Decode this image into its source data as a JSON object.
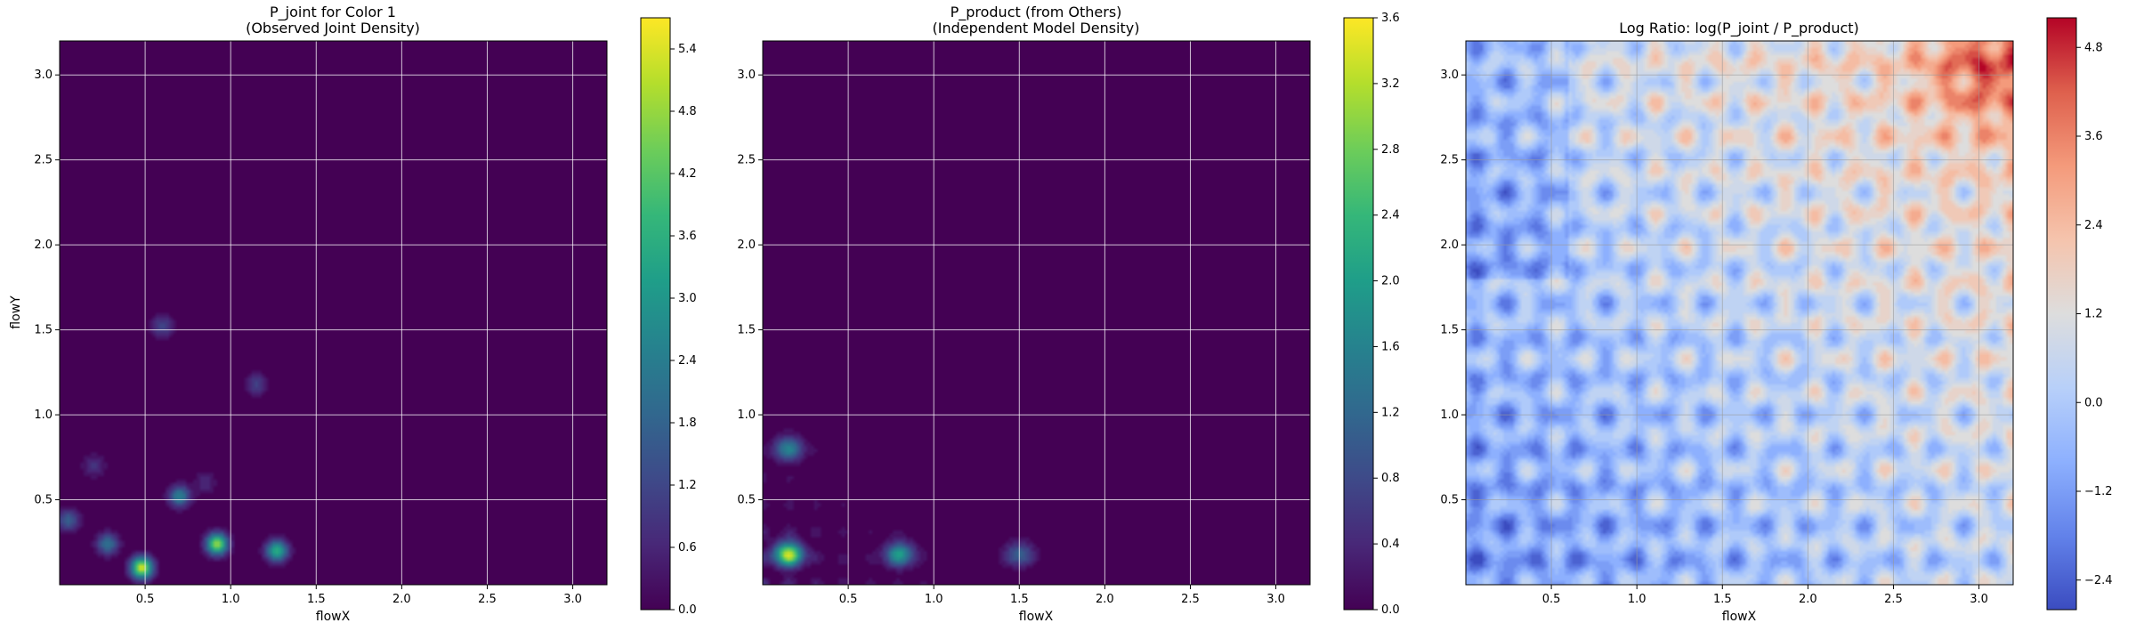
{
  "chart_data": [
    {
      "type": "heatmap",
      "title_lines": [
        "P_joint for Color 1",
        "(Observed Joint Density)"
      ],
      "xlabel": "flowX",
      "ylabel": "flowY",
      "xlim": [
        0.0,
        3.2
      ],
      "ylim": [
        0.0,
        3.2
      ],
      "xticks": [
        "0.5",
        "1.0",
        "1.5",
        "2.0",
        "2.5",
        "3.0"
      ],
      "yticks": [
        "0.5",
        "1.0",
        "1.5",
        "2.0",
        "2.5",
        "3.0"
      ],
      "grid": true,
      "colormap": "viridis",
      "colorbar_range": [
        0.0,
        5.7
      ],
      "colorbar_ticks": [
        "0.0",
        "0.6",
        "1.2",
        "1.8",
        "2.4",
        "3.0",
        "3.6",
        "4.2",
        "4.8",
        "5.4"
      ],
      "peaks": [
        {
          "x": 0.48,
          "y": 0.1,
          "value": 5.4
        },
        {
          "x": 0.92,
          "y": 0.24,
          "value": 4.8
        },
        {
          "x": 1.27,
          "y": 0.2,
          "value": 3.6
        },
        {
          "x": 0.7,
          "y": 0.52,
          "value": 2.6
        },
        {
          "x": 0.28,
          "y": 0.24,
          "value": 2.2
        },
        {
          "x": 0.05,
          "y": 0.38,
          "value": 1.8
        },
        {
          "x": 0.6,
          "y": 1.52,
          "value": 1.4
        },
        {
          "x": 1.15,
          "y": 1.18,
          "value": 1.2
        },
        {
          "x": 0.2,
          "y": 0.7,
          "value": 1.0
        },
        {
          "x": 0.85,
          "y": 0.6,
          "value": 0.8
        }
      ]
    },
    {
      "type": "heatmap",
      "title_lines": [
        "P_product (from Others)",
        "(Independent Model Density)"
      ],
      "xlabel": "flowX",
      "ylabel": "",
      "xlim": [
        0.0,
        3.2
      ],
      "ylim": [
        0.0,
        3.2
      ],
      "xticks": [
        "0.5",
        "1.0",
        "1.5",
        "2.0",
        "2.5",
        "3.0"
      ],
      "yticks": [
        "0.5",
        "1.0",
        "1.5",
        "2.0",
        "2.5",
        "3.0"
      ],
      "grid": true,
      "colormap": "viridis",
      "colorbar_range": [
        0.0,
        3.6
      ],
      "colorbar_ticks": [
        "0.0",
        "0.4",
        "0.8",
        "1.2",
        "1.6",
        "2.0",
        "2.4",
        "2.8",
        "3.2",
        "3.6"
      ],
      "marginal_x": [
        0.0,
        0.15,
        0.8,
        1.5
      ],
      "marginal_y": [
        0.18,
        0.8,
        1.5
      ],
      "peaks": [
        {
          "x": 0.15,
          "y": 0.18,
          "value": 3.2
        },
        {
          "x": 0.8,
          "y": 0.18,
          "value": 2.0
        },
        {
          "x": 0.15,
          "y": 0.8,
          "value": 1.6
        },
        {
          "x": 1.5,
          "y": 0.18,
          "value": 1.2
        }
      ]
    },
    {
      "type": "heatmap",
      "title_lines": [
        "Log Ratio: log(P_joint / P_product)"
      ],
      "xlabel": "flowX",
      "ylabel": "",
      "xlim": [
        0.0,
        3.2
      ],
      "ylim": [
        0.0,
        3.2
      ],
      "xticks": [
        "0.5",
        "1.0",
        "1.5",
        "2.0",
        "2.5",
        "3.0"
      ],
      "yticks": [
        "0.5",
        "1.0",
        "1.5",
        "2.0",
        "2.5",
        "3.0"
      ],
      "grid": true,
      "colormap": "coolwarm",
      "colorbar_range": [
        -2.8,
        5.2
      ],
      "colorbar_ticks": [
        "−2.4",
        "−1.2",
        "0.0",
        "1.2",
        "2.4",
        "3.6",
        "4.8"
      ],
      "colorbar_tick_values": [
        -2.4,
        -1.2,
        0.0,
        1.2,
        2.4,
        3.6,
        4.8
      ],
      "max_value": {
        "x": 3.05,
        "y": 3.05,
        "value": 5.0
      },
      "min_value": {
        "x": 0.1,
        "y": 2.6,
        "value": -2.6
      }
    }
  ]
}
